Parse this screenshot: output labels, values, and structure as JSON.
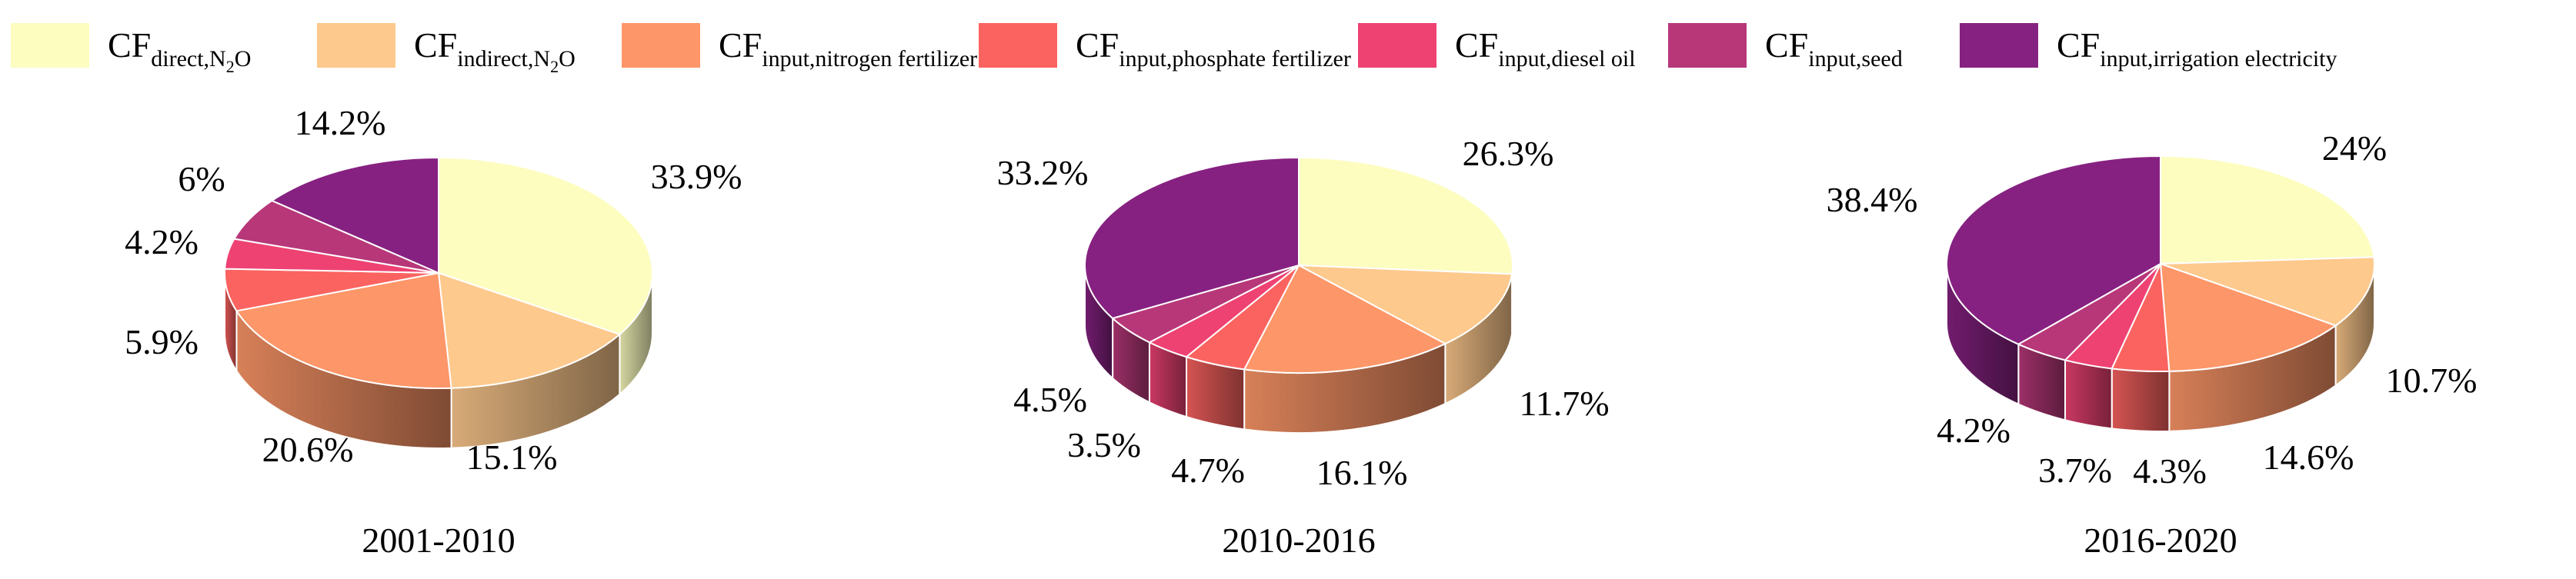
{
  "legend": [
    {
      "base": "CF",
      "sub": "direct,N",
      "sub2": "2",
      "sub3": "O",
      "color": "#FCFDBF"
    },
    {
      "base": "CF",
      "sub": "indirect,N",
      "sub2": "2",
      "sub3": "O",
      "color": "#FEC98D"
    },
    {
      "base": "CF",
      "sub": "input,nitrogen fertilizer",
      "color": "#FD9668"
    },
    {
      "base": "CF",
      "sub": "input,phosphate fertilizer",
      "color": "#FB6360"
    },
    {
      "base": "CF",
      "sub": "input,diesel oil",
      "color": "#EE4273"
    },
    {
      "base": "CF",
      "sub": "input,seed",
      "color": "#B73779"
    },
    {
      "base": "CF",
      "sub": "input,irrigation electricity",
      "color": "#862181"
    }
  ],
  "chart_data": [
    {
      "type": "pie",
      "title": "2001-2010",
      "categories": [
        "CF direct,N2O",
        "CF indirect,N2O",
        "CF input,nitrogen fertilizer",
        "CF input,phosphate fertilizer",
        "CF input,diesel oil",
        "CF input,seed",
        "CF input,irrigation electricity"
      ],
      "values": [
        33.9,
        15.1,
        20.6,
        5.9,
        4.2,
        6.0,
        14.2
      ],
      "labels": [
        "33.9%",
        "15.1%",
        "20.6%",
        "5.9%",
        "4.2%",
        "6%",
        "14.2%"
      ]
    },
    {
      "type": "pie",
      "title": "2010-2016",
      "categories": [
        "CF direct,N2O",
        "CF indirect,N2O",
        "CF input,nitrogen fertilizer",
        "CF input,phosphate fertilizer",
        "CF input,diesel oil",
        "CF input,seed",
        "CF input,irrigation electricity"
      ],
      "values": [
        26.3,
        11.7,
        16.1,
        4.7,
        3.5,
        4.5,
        33.2
      ],
      "labels": [
        "26.3%",
        "11.7%",
        "16.1%",
        "4.7%",
        "3.5%",
        "4.5%",
        "33.2%"
      ]
    },
    {
      "type": "pie",
      "title": "2016-2020",
      "categories": [
        "CF direct,N2O",
        "CF indirect,N2O",
        "CF input,nitrogen fertilizer",
        "CF input,phosphate fertilizer",
        "CF input,diesel oil",
        "CF input,seed",
        "CF input,irrigation electricity"
      ],
      "values": [
        24.0,
        10.7,
        14.6,
        4.3,
        3.7,
        4.2,
        38.4
      ],
      "labels": [
        "24%",
        "10.7%",
        "14.6%",
        "4.3%",
        "3.7%",
        "4.2%",
        "38.4%"
      ]
    }
  ]
}
